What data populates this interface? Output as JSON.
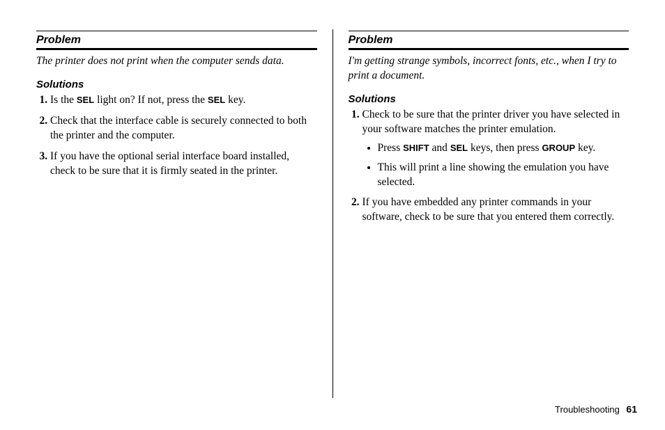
{
  "left": {
    "problem_heading": "Problem",
    "problem_text": "The printer does not print when the computer sends data.",
    "solutions_heading": "Solutions",
    "items": {
      "i1_a": "Is the ",
      "i1_key1": "SEL",
      "i1_b": " light on? If not, press the ",
      "i1_key2": "SEL",
      "i1_c": " key.",
      "i2": "Check that the interface cable is securely connected to both the printer and the computer.",
      "i3": "If you have the optional serial interface board installed, check to be sure that it is firmly seated in the printer."
    }
  },
  "right": {
    "problem_heading": "Problem",
    "problem_text": "I'm getting strange symbols, incorrect fonts, etc., when I try to print a document.",
    "solutions_heading": "Solutions",
    "items": {
      "i1": "Check to be sure that the printer driver you have selected in your software matches the printer emulation.",
      "sub1_a": "Press ",
      "sub1_key1": "SHIFT",
      "sub1_b": " and ",
      "sub1_key2": "SEL",
      "sub1_c": " keys, then press ",
      "sub1_key3": "GROUP",
      "sub1_d": " key.",
      "sub2": "This will print a line showing the emulation you have selected.",
      "i2": "If you have embedded any printer commands in your software, check to be sure that you entered them correctly."
    }
  },
  "footer": {
    "section": "Troubleshooting",
    "page": "61"
  }
}
